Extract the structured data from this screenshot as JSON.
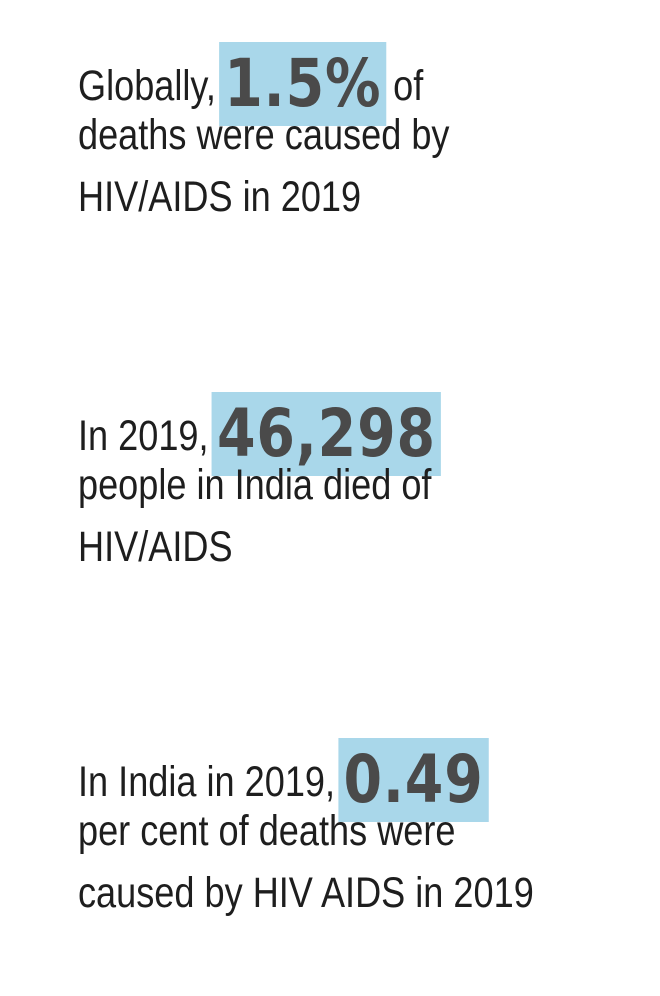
{
  "facts": [
    {
      "prefix": "Globally,",
      "highlight": "1.5%",
      "suffix": "of",
      "lines": [
        "deaths were caused by",
        "HIV/AIDS in 2019"
      ]
    },
    {
      "prefix": "In 2019,",
      "highlight": "46,298",
      "suffix": "",
      "lines": [
        "people in India died of",
        "HIV/AIDS"
      ]
    },
    {
      "prefix": "In India in 2019,",
      "highlight": "0.49",
      "suffix": "",
      "lines": [
        "per cent of deaths were",
        "caused by HIV AIDS in 2019"
      ]
    }
  ],
  "colors": {
    "highlight_background": "#a9d7ea",
    "highlight_text": "#4a4a4a",
    "body_text": "#1e1e1e"
  }
}
